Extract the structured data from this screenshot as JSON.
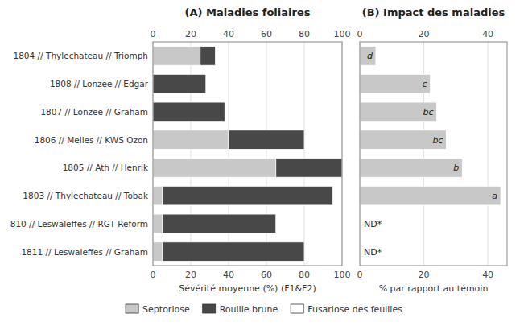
{
  "chart_data": [
    {
      "type": "bar",
      "orientation": "horizontal",
      "stacked": true,
      "title": "(A) Maladies foliaires",
      "x_label": "Sévérité moyenne (%) (F1&F2)",
      "categories": [
        "1804 // Thylechateau // Triomph",
        "1808 // Lonzee // Edgar",
        "1807 // Lonzee // Graham",
        "1806 // Melles // KWS Ozon",
        "1805 // Ath // Henrik",
        "1803 // Thylechateau // Tobak",
        "810 // Leswaleffes // RGT Reform",
        "1811 // Leswaleffes // Graham"
      ],
      "series": [
        {
          "name": "Septoriose",
          "color": "#c8c8c8",
          "values": [
            25,
            0,
            0,
            40,
            65,
            5,
            5,
            5
          ]
        },
        {
          "name": "Rouille brune",
          "color": "#484848",
          "values": [
            8,
            28,
            38,
            40,
            35,
            90,
            60,
            75
          ]
        },
        {
          "name": "Fusariose des feuilles",
          "color": "#ffffff",
          "values": [
            null,
            null,
            null,
            null,
            null,
            null,
            null,
            null
          ]
        }
      ],
      "xlim": [
        0,
        100
      ],
      "xticks": [
        0,
        20,
        40,
        60,
        80,
        100
      ],
      "grid": true,
      "legend": "bottom"
    },
    {
      "type": "bar",
      "orientation": "horizontal",
      "title": "(B) Impact des maladies",
      "x_label": "% par rapport au témoin",
      "categories": [
        null,
        null,
        null,
        null,
        null,
        null,
        null,
        null
      ],
      "values": [
        5,
        22,
        24,
        27,
        32,
        44,
        null,
        null
      ],
      "value_labels": [
        "d",
        "c",
        "bc",
        "bc",
        "b",
        "a",
        "ND*",
        "ND*"
      ],
      "data_labels": true,
      "color": "#c8c8c8",
      "xlim": [
        0,
        46
      ],
      "xticks": [
        0,
        20,
        40
      ],
      "grid": true,
      "tick_labels": "x"
    }
  ]
}
